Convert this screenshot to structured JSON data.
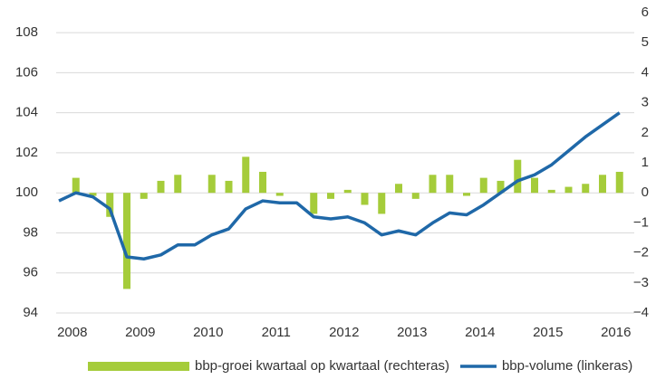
{
  "chart_data": {
    "type": "bar+line",
    "categories": [
      null,
      "2008",
      null,
      null,
      null,
      "2009",
      null,
      null,
      null,
      "2010",
      null,
      null,
      null,
      "2011",
      null,
      null,
      null,
      "2012",
      null,
      null,
      null,
      "2013",
      null,
      null,
      null,
      "2014",
      null,
      null,
      null,
      "2015",
      null,
      null,
      null,
      "2016"
    ],
    "series": [
      {
        "name": "bbp-groei kwartaal op kwartaal (rechteras)",
        "type": "bar",
        "axis": "y2",
        "color": "#a5cc3a",
        "values": [
          0.0,
          0.5,
          -0.1,
          -0.8,
          -3.2,
          -0.2,
          0.4,
          0.6,
          0.0,
          0.6,
          0.4,
          1.2,
          0.7,
          -0.1,
          0.0,
          -0.7,
          -0.2,
          0.1,
          -0.4,
          -0.7,
          0.3,
          -0.2,
          0.6,
          0.6,
          -0.1,
          0.5,
          0.4,
          1.1,
          0.5,
          0.1,
          0.2,
          0.3,
          0.6,
          0.7
        ]
      },
      {
        "name": "bbp-volume (linkeras)",
        "type": "line",
        "axis": "y",
        "color": "#1f68a8",
        "values": [
          99.6,
          100.0,
          99.8,
          99.2,
          96.8,
          96.7,
          96.9,
          97.4,
          97.4,
          97.9,
          98.2,
          99.2,
          99.6,
          99.5,
          99.5,
          98.8,
          98.7,
          98.8,
          98.5,
          97.9,
          98.1,
          97.9,
          98.5,
          99.0,
          98.9,
          99.4,
          100.0,
          100.6,
          100.9,
          101.4,
          102.1,
          102.8,
          103.4,
          104.0
        ]
      }
    ],
    "ylim": [
      94,
      109
    ],
    "yticks": [
      94,
      96,
      98,
      100,
      102,
      104,
      106,
      108
    ],
    "y2lim": [
      -4,
      6
    ],
    "y2ticks": [
      {
        "value": -4,
        "label": "−4"
      },
      {
        "value": -3,
        "label": "−3"
      },
      {
        "value": -2,
        "label": "−2"
      },
      {
        "value": -1,
        "label": "−1"
      },
      0,
      1,
      2,
      3,
      4,
      5,
      6
    ],
    "grid": true,
    "legend": "bottom"
  }
}
